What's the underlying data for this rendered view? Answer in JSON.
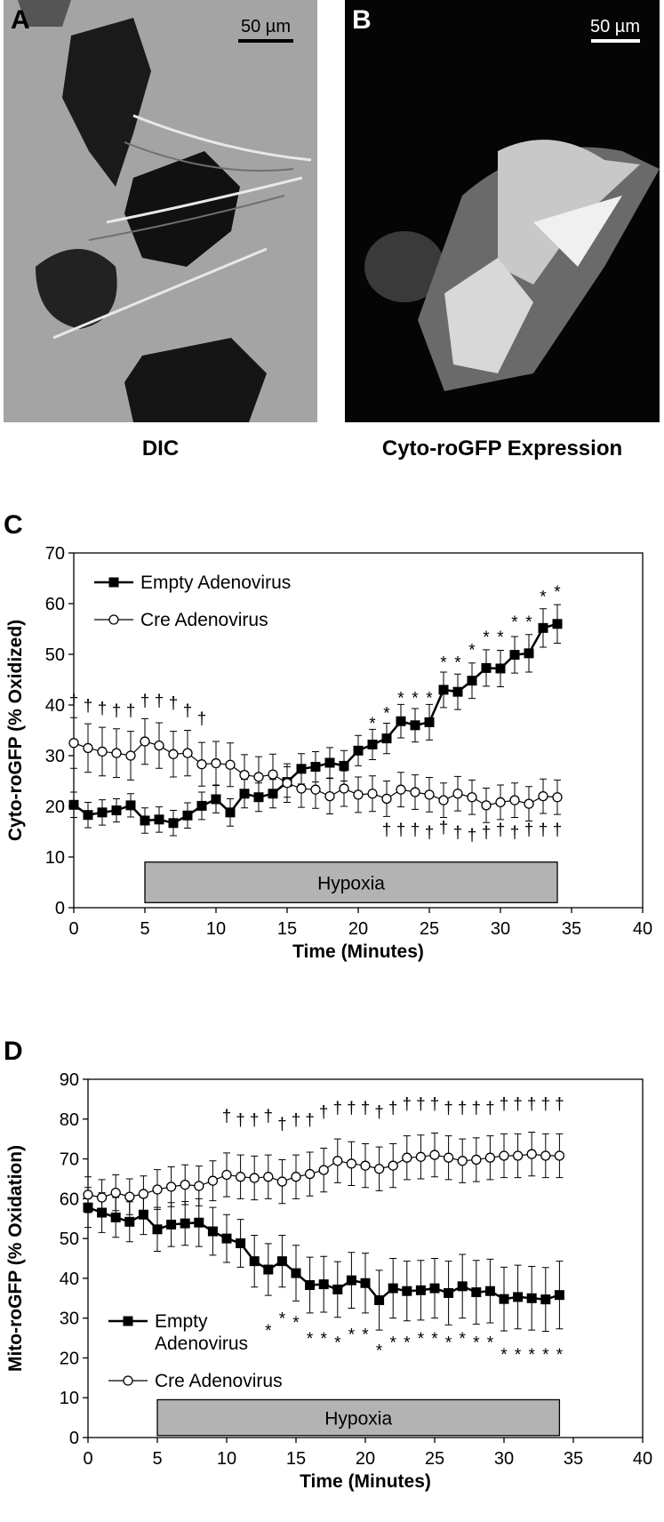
{
  "panels": [
    {
      "letter": "A",
      "scale": "50 µm",
      "caption": "DIC"
    },
    {
      "letter": "B",
      "scale": "50 µm",
      "caption": "Cyto-roGFP Expression"
    }
  ],
  "chart_data": [
    {
      "type": "line",
      "panel_label": "C",
      "x_label": "Time (Minutes)",
      "y_label": "Cyto-roGFP (% Oxidized)",
      "xlim": [
        0,
        40
      ],
      "xticks": [
        0,
        5,
        10,
        15,
        20,
        25,
        30,
        35,
        40
      ],
      "ylim": [
        0,
        70
      ],
      "yticks": [
        0,
        10,
        20,
        30,
        40,
        50,
        60,
        70
      ],
      "legend": "upper left",
      "x": [
        0,
        1,
        2,
        3,
        4,
        5,
        6,
        7,
        8,
        9,
        10,
        11,
        12,
        13,
        14,
        15,
        16,
        17,
        18,
        19,
        20,
        21,
        22,
        23,
        24,
        25,
        26,
        27,
        28,
        29,
        30,
        31,
        32,
        33,
        34
      ],
      "series": [
        {
          "name": "Empty Adenovirus",
          "color": "#000000",
          "marker": "square",
          "values": [
            20.3,
            18.3,
            18.8,
            19.2,
            20.2,
            17.2,
            17.4,
            16.7,
            18.2,
            20.1,
            21.4,
            18.8,
            22.5,
            21.8,
            22.5,
            24.8,
            27.4,
            27.8,
            28.6,
            28.0,
            31.0,
            32.2,
            33.4,
            36.8,
            36.0,
            36.6,
            43.0,
            42.6,
            44.8,
            47.3,
            47.2,
            49.9,
            50.2,
            55.2,
            56.0
          ],
          "errors": [
            2.5,
            2.5,
            2.5,
            2.3,
            2.3,
            2.5,
            2.5,
            2.5,
            2.5,
            2.7,
            2.7,
            2.7,
            2.8,
            2.8,
            2.8,
            3,
            3,
            3,
            3,
            3,
            3,
            3,
            3,
            3.3,
            3.3,
            3.5,
            3.5,
            3.5,
            3.5,
            3.6,
            3.6,
            3.6,
            3.7,
            3.8,
            3.8
          ]
        },
        {
          "name": "Cre Adenovirus",
          "color": "#000000",
          "marker": "circle",
          "values": [
            32.5,
            31.5,
            30.8,
            30.5,
            30.0,
            32.8,
            32.0,
            30.3,
            30.5,
            28.3,
            28.5,
            28.2,
            26.2,
            25.8,
            26.3,
            24.6,
            23.5,
            23.3,
            22.0,
            23.5,
            22.3,
            22.5,
            21.5,
            23.3,
            22.8,
            22.3,
            21.2,
            22.5,
            21.8,
            20.2,
            20.8,
            21.2,
            20.5,
            22.0,
            21.8
          ],
          "errors": [
            5,
            4.8,
            4.8,
            4.8,
            4.8,
            4.5,
            4.5,
            4.5,
            4.5,
            4.3,
            4.3,
            4.3,
            4,
            4,
            4,
            3.8,
            3.7,
            3.7,
            3.5,
            3.5,
            3.5,
            3.5,
            3.5,
            3.4,
            3.4,
            3.4,
            3.4,
            3.4,
            3.4,
            3.4,
            3.4,
            3.4,
            3.4,
            3.4,
            3.4
          ]
        }
      ],
      "shaded": {
        "label": "Hypoxia",
        "x": [
          5,
          34
        ],
        "y": [
          1,
          9
        ]
      },
      "annotations": [
        {
          "text": "*",
          "points": [
            [
              21,
              36.5
            ],
            [
              22,
              38.5
            ],
            [
              23,
              41.5
            ],
            [
              24,
              41.5
            ],
            [
              25,
              41.5
            ],
            [
              26,
              48.5
            ],
            [
              27,
              48.5
            ],
            [
              28,
              51
            ],
            [
              29,
              53.5
            ],
            [
              30,
              53.5
            ],
            [
              31,
              56.5
            ],
            [
              32,
              56.5
            ],
            [
              33,
              61.5
            ],
            [
              34,
              62.5
            ]
          ]
        },
        {
          "text": "†",
          "points": [
            [
              0,
              41
            ],
            [
              1,
              40
            ],
            [
              2,
              39.5
            ],
            [
              3,
              39
            ],
            [
              4,
              39
            ],
            [
              5,
              41
            ],
            [
              6,
              41
            ],
            [
              7,
              40.5
            ],
            [
              8,
              39
            ],
            [
              9,
              37.5
            ],
            [
              22,
              15.5
            ],
            [
              23,
              15.5
            ],
            [
              24,
              15.5
            ],
            [
              25,
              15
            ],
            [
              26,
              16
            ],
            [
              27,
              15
            ],
            [
              28,
              14.5
            ],
            [
              29,
              15
            ],
            [
              30,
              15.5
            ],
            [
              31,
              15
            ],
            [
              32,
              15.5
            ],
            [
              33,
              15.5
            ],
            [
              34,
              15.5
            ]
          ]
        }
      ]
    },
    {
      "type": "line",
      "panel_label": "D",
      "x_label": "Time (Minutes)",
      "y_label": "Mito-roGFP (% Oxidation)",
      "xlim": [
        0,
        40
      ],
      "xticks": [
        0,
        5,
        10,
        15,
        20,
        25,
        30,
        35,
        40
      ],
      "ylim": [
        0,
        90
      ],
      "yticks": [
        0,
        10,
        20,
        30,
        40,
        50,
        60,
        70,
        80,
        90
      ],
      "legend": "lower left",
      "x": [
        0,
        1,
        2,
        3,
        4,
        5,
        6,
        7,
        8,
        9,
        10,
        11,
        12,
        13,
        14,
        15,
        16,
        17,
        18,
        19,
        20,
        21,
        22,
        23,
        24,
        25,
        26,
        27,
        28,
        29,
        30,
        31,
        32,
        33,
        34
      ],
      "series": [
        {
          "name": "Empty Adenovirus",
          "color": "#000000",
          "marker": "square",
          "values": [
            57.8,
            56.5,
            55.3,
            54.2,
            56.0,
            52.3,
            53.5,
            53.8,
            54.0,
            51.8,
            50.0,
            48.8,
            44.3,
            42.2,
            44.3,
            41.3,
            38.3,
            38.5,
            37.2,
            39.5,
            38.8,
            34.5,
            37.5,
            36.8,
            37.0,
            37.5,
            36.3,
            38.0,
            36.5,
            36.8,
            34.8,
            35.3,
            35.0,
            34.7,
            35.8
          ],
          "errors": [
            5,
            5,
            5,
            5,
            5,
            5.5,
            5.5,
            5.5,
            6,
            6,
            6,
            6,
            6.5,
            6.5,
            6.5,
            7,
            7,
            7,
            7,
            7,
            7.5,
            7.5,
            7.5,
            7.5,
            7.5,
            7.5,
            8,
            8,
            8,
            8,
            8,
            8,
            8,
            8,
            8.5
          ]
        },
        {
          "name": "Cre Adenovirus",
          "color": "#000000",
          "marker": "circle",
          "values": [
            61,
            60.3,
            61.5,
            60.5,
            61.2,
            62.3,
            63,
            63.5,
            63.2,
            64.5,
            66,
            65.5,
            65.2,
            65.5,
            64.3,
            65.5,
            66.2,
            67.2,
            69.5,
            68.8,
            68.3,
            67.5,
            68.3,
            70.3,
            70.5,
            71,
            70.3,
            69.5,
            69.8,
            70.3,
            70.8,
            70.8,
            71.2,
            70.8,
            70.8
          ],
          "errors": [
            4.5,
            4.5,
            4.5,
            4.5,
            4.5,
            5,
            5,
            5,
            5,
            5,
            5.5,
            5.5,
            5.5,
            5.5,
            5.5,
            5.5,
            5.5,
            5.5,
            5.5,
            5.5,
            5.5,
            5.5,
            5.5,
            5.5,
            5.5,
            5.5,
            5.5,
            5.5,
            5.5,
            5.5,
            5.5,
            5.5,
            5.5,
            5.5,
            5.5
          ]
        }
      ],
      "shaded": {
        "label": "Hypoxia",
        "x": [
          5,
          34
        ],
        "y": [
          0.5,
          9.5
        ]
      },
      "annotations": [
        {
          "text": "*",
          "points": [
            [
              13,
              27
            ],
            [
              14,
              30
            ],
            [
              15,
              29
            ],
            [
              16,
              25
            ],
            [
              17,
              25
            ],
            [
              18,
              24
            ],
            [
              19,
              26
            ],
            [
              20,
              26
            ],
            [
              21,
              22
            ],
            [
              22,
              24
            ],
            [
              23,
              24
            ],
            [
              24,
              25
            ],
            [
              25,
              25
            ],
            [
              26,
              24
            ],
            [
              27,
              25
            ],
            [
              28,
              24
            ],
            [
              29,
              24
            ],
            [
              30,
              21
            ],
            [
              31,
              21
            ],
            [
              32,
              21
            ],
            [
              33,
              21
            ],
            [
              34,
              21
            ]
          ]
        },
        {
          "text": "†",
          "points": [
            [
              10,
              81
            ],
            [
              11,
              80
            ],
            [
              12,
              80
            ],
            [
              13,
              81
            ],
            [
              14,
              79
            ],
            [
              15,
              80
            ],
            [
              16,
              80
            ],
            [
              17,
              82
            ],
            [
              18,
              83
            ],
            [
              19,
              83
            ],
            [
              20,
              83
            ],
            [
              21,
              82
            ],
            [
              22,
              83
            ],
            [
              23,
              84
            ],
            [
              24,
              84
            ],
            [
              25,
              84
            ],
            [
              26,
              83
            ],
            [
              27,
              83
            ],
            [
              28,
              83
            ],
            [
              29,
              83
            ],
            [
              30,
              84
            ],
            [
              31,
              84
            ],
            [
              32,
              84
            ],
            [
              33,
              84
            ],
            [
              34,
              84
            ]
          ]
        }
      ]
    }
  ]
}
